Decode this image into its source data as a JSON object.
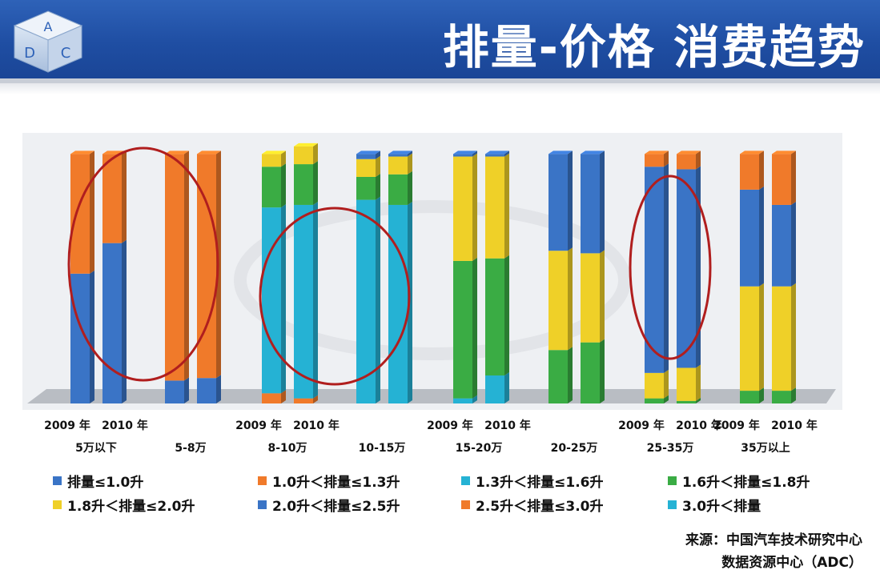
{
  "header": {
    "title": "排量-价格 消费趋势",
    "logo_letters": [
      "A",
      "D",
      "C"
    ]
  },
  "colors": {
    "header_bg": "#1f4ea3",
    "circle": "#b01e1e",
    "series": [
      "#3a74c6",
      "#f07a2a",
      "#25b2d4",
      "#3aac44",
      "#efd028",
      "#3a74c6",
      "#f07a2a",
      "#25b2d4"
    ]
  },
  "chart_data": {
    "type": "bar",
    "stacked": true,
    "percent": true,
    "ylim": [
      0,
      100
    ],
    "price_groups": [
      "5万以下",
      "5-8万",
      "8-10万",
      "10-15万",
      "15-20万",
      "20-25万",
      "25-35万",
      "35万以上"
    ],
    "year_labels": [
      "2009 年",
      "2010 年"
    ],
    "year_label_groups": [
      0,
      2,
      4,
      6,
      7
    ],
    "series": [
      {
        "name": "排量≤1.0升",
        "values": [
          [
            51,
            63
          ],
          [
            9,
            10
          ],
          [
            0,
            0
          ],
          [
            0,
            0
          ],
          [
            0,
            0
          ],
          [
            0,
            0
          ],
          [
            0,
            0
          ],
          [
            0,
            0
          ]
        ]
      },
      {
        "name": "1.0升＜排量≤1.3升",
        "values": [
          [
            47,
            35
          ],
          [
            89,
            88
          ],
          [
            4,
            2
          ],
          [
            0,
            0
          ],
          [
            0,
            0
          ],
          [
            0,
            0
          ],
          [
            0,
            0
          ],
          [
            0,
            0
          ]
        ]
      },
      {
        "name": "1.3升＜排量≤1.6升",
        "values": [
          [
            0,
            0
          ],
          [
            0,
            0
          ],
          [
            73,
            76
          ],
          [
            80,
            78
          ],
          [
            2,
            11
          ],
          [
            0,
            0
          ],
          [
            0,
            0
          ],
          [
            0,
            0
          ]
        ]
      },
      {
        "name": "1.6升＜排量≤1.8升",
        "values": [
          [
            0,
            0
          ],
          [
            0,
            0
          ],
          [
            16,
            16
          ],
          [
            9,
            12
          ],
          [
            54,
            46
          ],
          [
            21,
            24
          ],
          [
            2,
            1
          ],
          [
            5,
            5
          ]
        ]
      },
      {
        "name": "1.8升＜排量≤2.0升",
        "values": [
          [
            0,
            0
          ],
          [
            0,
            0
          ],
          [
            5,
            7
          ],
          [
            7,
            7
          ],
          [
            41,
            40
          ],
          [
            39,
            35
          ],
          [
            10,
            13
          ],
          [
            41,
            41
          ]
        ]
      },
      {
        "name": "2.0升＜排量≤2.5升",
        "values": [
          [
            0,
            0
          ],
          [
            0,
            0
          ],
          [
            0,
            0
          ],
          [
            2,
            1
          ],
          [
            1,
            1
          ],
          [
            38,
            39
          ],
          [
            81,
            78
          ],
          [
            38,
            32
          ]
        ]
      },
      {
        "name": "2.5升＜排量≤3.0升",
        "values": [
          [
            0,
            0
          ],
          [
            0,
            0
          ],
          [
            0,
            0
          ],
          [
            0,
            0
          ],
          [
            0,
            0
          ],
          [
            0,
            0
          ],
          [
            5,
            6
          ],
          [
            14,
            20
          ]
        ]
      },
      {
        "name": "3.0升＜排量",
        "values": [
          [
            0,
            0
          ],
          [
            0,
            0
          ],
          [
            0,
            0
          ],
          [
            0,
            0
          ],
          [
            0,
            0
          ],
          [
            0,
            0
          ],
          [
            0,
            0
          ],
          [
            0,
            0
          ]
        ]
      }
    ],
    "legend_position": "bottom",
    "grid": false,
    "annotations": [
      {
        "type": "ellipse",
        "groups": [
          0,
          1
        ]
      },
      {
        "type": "ellipse",
        "groups": [
          2,
          3
        ]
      },
      {
        "type": "ellipse",
        "groups": [
          6
        ]
      }
    ]
  },
  "source": {
    "line1": "来源：中国汽车技术研究中心",
    "line2": "数据资源中心（ADC）"
  }
}
